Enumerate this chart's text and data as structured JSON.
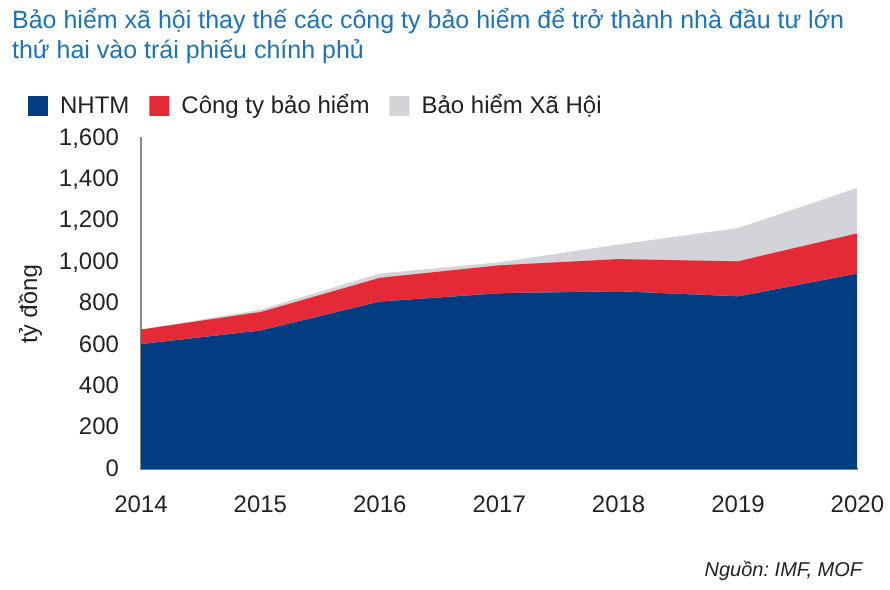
{
  "chart_data": {
    "type": "area",
    "title": "Bảo hiểm xã hội thay thế các công ty bảo hiểm để trở thành nhà đầu tư lớn thứ hai vào trái phiếu chính phủ",
    "ylabel": "tỷ đồng",
    "annotations": [
      "Nguồn: IMF, MOF"
    ],
    "categories": [
      "2014",
      "2015",
      "2016",
      "2017",
      "2018",
      "2019",
      "2020"
    ],
    "stacked": true,
    "legend": "top",
    "grid": false,
    "ylim": [
      0,
      1600
    ],
    "yticks": [
      0,
      {
        "value": 200,
        "label": "200"
      },
      {
        "value": 400,
        "label": "400"
      },
      {
        "value": 600,
        "label": "600"
      },
      {
        "value": 800,
        "label": "800"
      },
      {
        "value": 1000,
        "label": "1,000"
      },
      {
        "value": 1200,
        "label": "1,200"
      },
      {
        "value": 1400,
        "label": "1,400"
      },
      {
        "value": 1600,
        "label": "1,600"
      }
    ],
    "series": [
      {
        "name": "NHTM",
        "color": "#023d82",
        "values": [
          605,
          670,
          810,
          850,
          860,
          835,
          945
        ]
      },
      {
        "name": "Công ty bảo hiểm",
        "color": "#e32a36",
        "values": [
          70,
          90,
          115,
          135,
          155,
          170,
          195
        ]
      },
      {
        "name": "Bảo hiểm Xã Hội",
        "color": "#d2d4d9",
        "values": [
          0,
          10,
          20,
          15,
          70,
          160,
          220
        ]
      }
    ]
  }
}
